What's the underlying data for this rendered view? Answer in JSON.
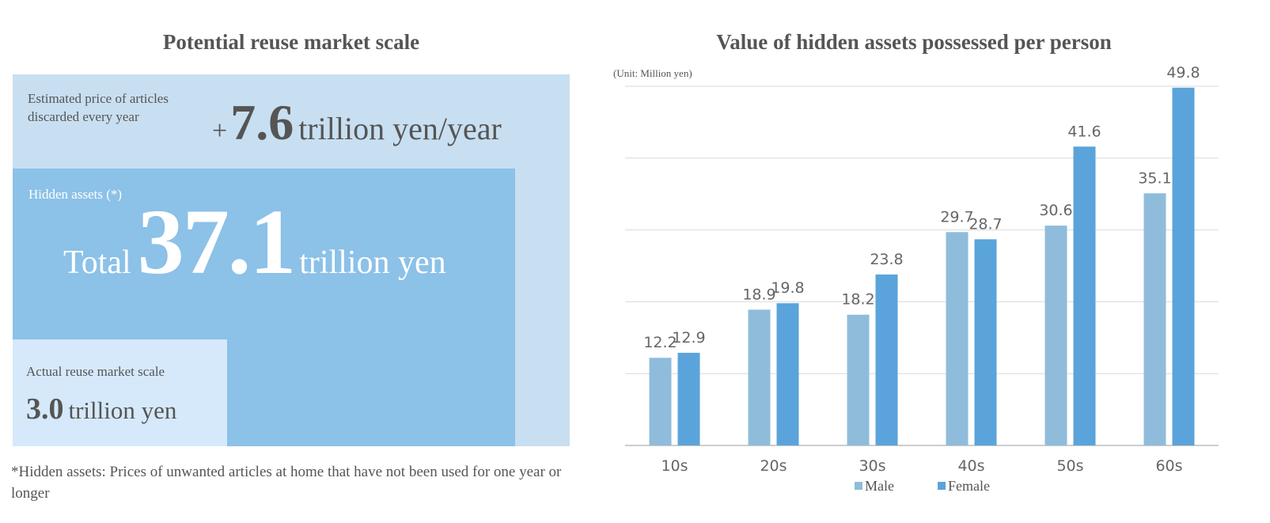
{
  "left_panel": {
    "title": "Potential reuse market scale",
    "estimated": {
      "label": "Estimated price of articles discarded every year",
      "prefix": "+",
      "value": "7.6",
      "unit": "trillion yen/year"
    },
    "hidden_assets": {
      "label": "Hidden assets (*)",
      "prefix": "Total",
      "value": "37.1",
      "unit": "trillion yen"
    },
    "actual": {
      "label": "Actual reuse market scale",
      "value": "3.0",
      "unit": "trillion yen"
    },
    "footnote": "*Hidden assets: Prices of unwanted articles at home that have not been used for one year or longer",
    "colors": {
      "outer": "#c8dff1",
      "hidden": "#8cc1e8",
      "actual": "#d6e9fb"
    }
  },
  "chart_data": {
    "type": "bar",
    "title": "Value of hidden assets possessed per person",
    "unit_note": "(Unit: Million yen)",
    "categories": [
      "10s",
      "20s",
      "30s",
      "40s",
      "50s",
      "60s"
    ],
    "series": [
      {
        "name": "Male",
        "values": [
          12.2,
          18.9,
          18.2,
          29.7,
          30.6,
          35.1
        ],
        "color": "#8fbcdb"
      },
      {
        "name": "Female",
        "values": [
          12.9,
          19.8,
          23.8,
          28.7,
          41.6,
          49.8
        ],
        "color": "#5aa4db"
      }
    ],
    "ylim": [
      0,
      50
    ],
    "grid": true,
    "legend": "bottom-center"
  }
}
